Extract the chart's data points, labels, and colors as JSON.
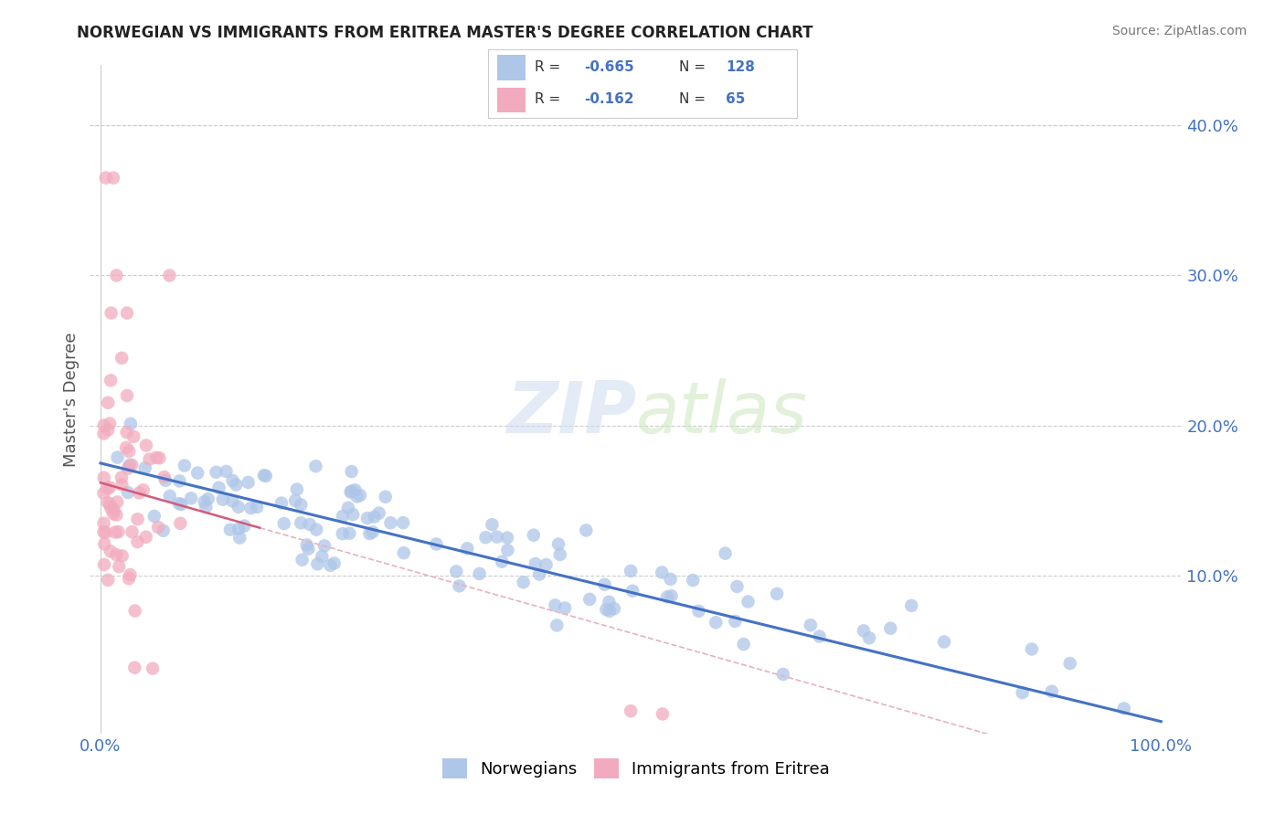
{
  "title": "NORWEGIAN VS IMMIGRANTS FROM ERITREA MASTER'S DEGREE CORRELATION CHART",
  "source": "Source: ZipAtlas.com",
  "ylabel": "Master's Degree",
  "right_yticks": [
    "40.0%",
    "30.0%",
    "20.0%",
    "10.0%"
  ],
  "right_ytick_vals": [
    0.4,
    0.3,
    0.2,
    0.1
  ],
  "legend_norwegian": "Norwegians",
  "legend_eritrea": "Immigrants from Eritrea",
  "R_norwegian": -0.665,
  "N_norwegian": 128,
  "R_eritrea": -0.162,
  "N_eritrea": 65,
  "blue_color": "#aec6e8",
  "pink_color": "#f2abbe",
  "blue_line_color": "#4472c4",
  "pink_line_color": "#d45a7a",
  "pink_dash_color": "#e8b0c0",
  "title_color": "#222222",
  "axis_label_color": "#4472c4",
  "background_color": "#ffffff",
  "grid_color": "#cccccc",
  "ylim_min": -0.005,
  "ylim_max": 0.44,
  "xlim_min": -0.01,
  "xlim_max": 1.02
}
